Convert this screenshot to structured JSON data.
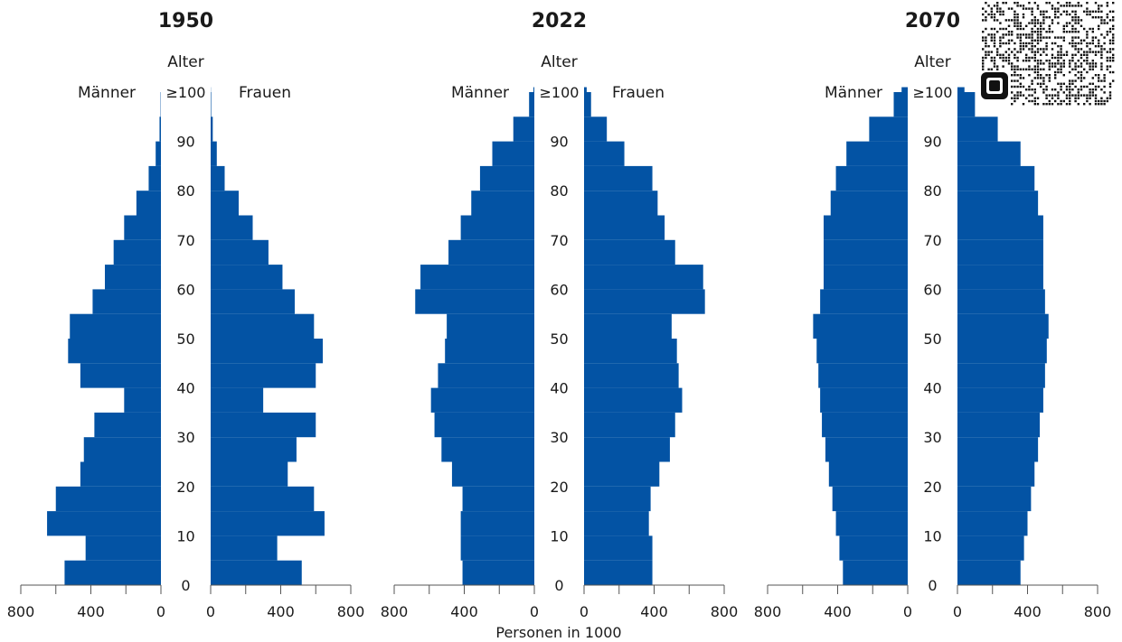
{
  "chart_data": [
    {
      "type": "bar",
      "orientation": "population-pyramid",
      "title": "1950",
      "age_axis_title": "Alter",
      "left_label": "Männer",
      "right_label": "Frauen",
      "age_ticks": [
        "0",
        "10",
        "20",
        "30",
        "40",
        "50",
        "60",
        "70",
        "80",
        "90",
        "≥100"
      ],
      "x_ticks": [
        "800",
        "400",
        "0"
      ],
      "x_ticks_right": [
        "0",
        "400",
        "800"
      ],
      "xlim": [
        0,
        800
      ],
      "ages": [
        0,
        5,
        10,
        15,
        20,
        25,
        30,
        35,
        40,
        45,
        50,
        55,
        60,
        65,
        70,
        75,
        80,
        85,
        90,
        95,
        100
      ],
      "men": [
        550,
        430,
        650,
        600,
        460,
        440,
        380,
        210,
        460,
        530,
        520,
        390,
        320,
        270,
        210,
        140,
        70,
        30,
        8,
        2,
        0
      ],
      "women": [
        520,
        380,
        650,
        590,
        440,
        490,
        600,
        300,
        600,
        640,
        590,
        480,
        410,
        330,
        240,
        160,
        80,
        35,
        12,
        3,
        1
      ]
    },
    {
      "type": "bar",
      "orientation": "population-pyramid",
      "title": "2022",
      "age_axis_title": "Alter",
      "left_label": "Männer",
      "right_label": "Frauen",
      "age_ticks": [
        "0",
        "10",
        "20",
        "30",
        "40",
        "50",
        "60",
        "70",
        "80",
        "90",
        "≥100"
      ],
      "x_ticks": [
        "800",
        "400",
        "0"
      ],
      "x_ticks_right": [
        "0",
        "400",
        "800"
      ],
      "xlim": [
        0,
        800
      ],
      "ages": [
        0,
        5,
        10,
        15,
        20,
        25,
        30,
        35,
        40,
        45,
        50,
        55,
        60,
        65,
        70,
        75,
        80,
        85,
        90,
        95,
        100
      ],
      "men": [
        410,
        420,
        420,
        410,
        470,
        530,
        570,
        590,
        550,
        510,
        500,
        680,
        650,
        490,
        420,
        360,
        310,
        240,
        120,
        30,
        5
      ],
      "women": [
        390,
        390,
        370,
        380,
        430,
        490,
        520,
        560,
        540,
        530,
        500,
        690,
        680,
        520,
        460,
        420,
        390,
        230,
        130,
        40,
        15
      ]
    },
    {
      "type": "bar",
      "orientation": "population-pyramid",
      "title": "2070",
      "age_axis_title": "Alter",
      "left_label": "Männer",
      "right_label": "Frauen",
      "age_ticks": [
        "0",
        "10",
        "20",
        "30",
        "40",
        "50",
        "60",
        "70",
        "80",
        "90",
        "≥100"
      ],
      "x_ticks": [
        "800",
        "400",
        "0"
      ],
      "x_ticks_right": [
        "0",
        "400",
        "800"
      ],
      "xlim": [
        0,
        800
      ],
      "ages": [
        0,
        5,
        10,
        15,
        20,
        25,
        30,
        35,
        40,
        45,
        50,
        55,
        60,
        65,
        70,
        75,
        80,
        85,
        90,
        95,
        100
      ],
      "men": [
        370,
        390,
        410,
        430,
        450,
        470,
        490,
        500,
        510,
        520,
        540,
        500,
        480,
        480,
        480,
        440,
        410,
        350,
        220,
        80,
        35
      ],
      "women": [
        360,
        380,
        400,
        420,
        440,
        460,
        470,
        490,
        500,
        510,
        520,
        500,
        490,
        490,
        490,
        460,
        440,
        360,
        230,
        100,
        40
      ]
    }
  ],
  "x_axis_label": "Personen in 1000",
  "bar_color": "#0353a4"
}
